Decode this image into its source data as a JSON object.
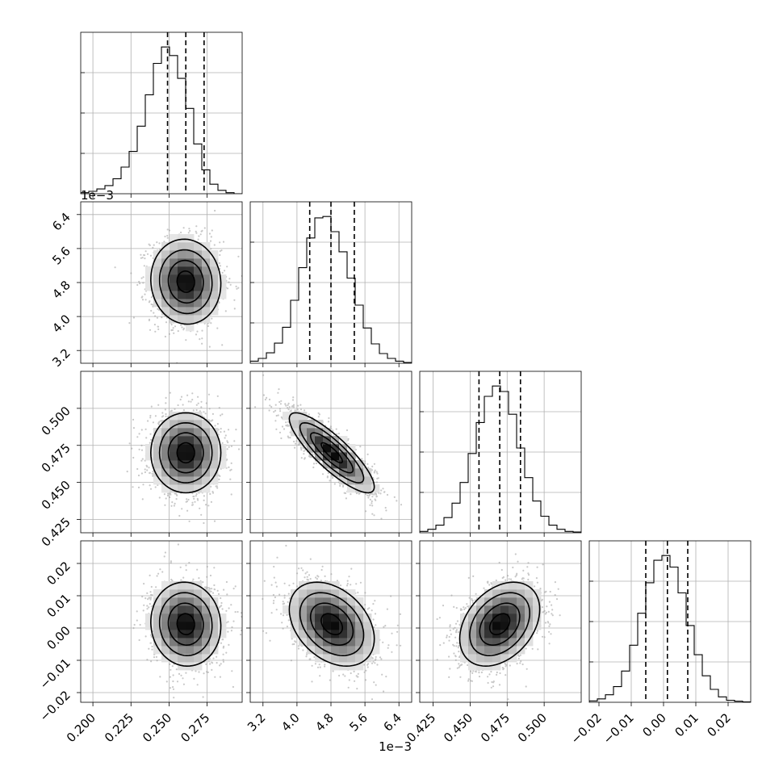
{
  "chart_data": {
    "type": "corner",
    "title": "",
    "grid": true,
    "offset_label": "1e−3",
    "parameters": [
      {
        "range": [
          0.192,
          0.298
        ],
        "ticks": [
          0.2,
          0.225,
          0.25,
          0.275
        ],
        "tick_labels": [
          "0.200",
          "0.225",
          "0.250",
          "0.275"
        ],
        "offset_label": "",
        "center": 0.261,
        "sigma": 0.0115,
        "quantiles": [
          0.249,
          0.261,
          0.273
        ]
      },
      {
        "range": [
          2.9,
          6.7
        ],
        "ticks": [
          3.2,
          4.0,
          4.8,
          5.6,
          6.4
        ],
        "tick_labels": [
          "3.2",
          "4.0",
          "4.8",
          "5.6",
          "6.4"
        ],
        "offset_label": "1e−3",
        "center": 4.82,
        "sigma": 0.5,
        "quantiles": [
          4.3,
          4.8,
          5.35
        ]
      },
      {
        "range": [
          0.416,
          0.525
        ],
        "ticks": [
          0.425,
          0.45,
          0.475,
          0.5
        ],
        "tick_labels": [
          "0.425",
          "0.450",
          "0.475",
          "0.500"
        ],
        "offset_label": "",
        "center": 0.47,
        "sigma": 0.0135,
        "quantiles": [
          0.456,
          0.47,
          0.484
        ]
      },
      {
        "range": [
          -0.023,
          0.027
        ],
        "ticks": [
          -0.02,
          -0.01,
          0.0,
          0.01,
          0.02
        ],
        "tick_labels": [
          "−0.02",
          "−0.01",
          "0.00",
          "0.01",
          "0.02"
        ],
        "offset_label": "",
        "center": 0.0012,
        "sigma": 0.0065,
        "quantiles": [
          -0.0055,
          0.0012,
          0.0075
        ]
      }
    ],
    "correlations": [
      [
        1.0,
        -0.05,
        0.0,
        -0.05
      ],
      [
        -0.05,
        1.0,
        -0.85,
        -0.35
      ],
      [
        0.0,
        -0.85,
        1.0,
        0.35
      ],
      [
        -0.05,
        -0.35,
        0.35,
        1.0
      ]
    ],
    "histogram_bins": 20,
    "histogram_counts": [
      [
        3,
        7,
        14,
        24,
        44,
        78,
        124,
        198,
        290,
        382,
        430,
        405,
        338,
        250,
        146,
        70,
        28,
        10,
        3,
        0
      ],
      [
        6,
        14,
        30,
        58,
        104,
        182,
        276,
        362,
        420,
        424,
        380,
        322,
        246,
        168,
        102,
        56,
        28,
        14,
        6,
        2
      ],
      [
        4,
        10,
        22,
        44,
        86,
        146,
        230,
        320,
        396,
        426,
        410,
        344,
        246,
        160,
        92,
        48,
        22,
        10,
        4,
        2
      ],
      [
        4,
        10,
        22,
        46,
        92,
        168,
        262,
        352,
        418,
        432,
        398,
        322,
        226,
        140,
        78,
        38,
        16,
        6,
        3,
        1
      ]
    ],
    "contour_levels_sigma": [
      0.5,
      1.0,
      1.5,
      2.0
    ]
  }
}
